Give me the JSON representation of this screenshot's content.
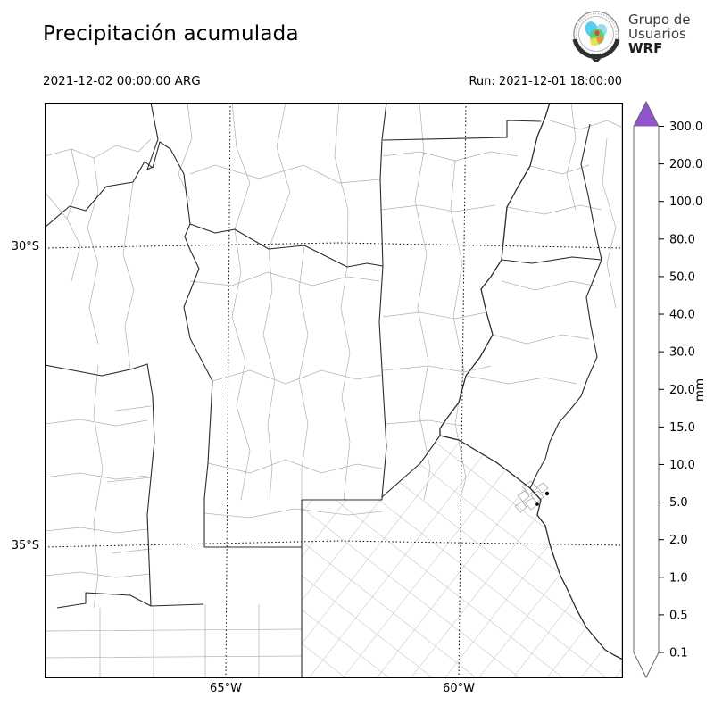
{
  "header": {
    "title": "Precipitación acumulada",
    "valid_time": "2021-12-02 00:00:00 ARG",
    "run": "Run: 2021-12-01 18:00:00"
  },
  "logo": {
    "line1": "Grupo de",
    "line2": "Usuarios",
    "line3": "WRF"
  },
  "map": {
    "lat_labels": [
      {
        "text": "30°S"
      },
      {
        "text": "35°S"
      }
    ],
    "lon_labels": [
      {
        "text": "65°W"
      },
      {
        "text": "60°W"
      }
    ]
  },
  "colorbar": {
    "unit": "mm",
    "tick_labels": [
      "300.0",
      "200.0",
      "100.0",
      "80.0",
      "50.0",
      "40.0",
      "30.0",
      "20.0",
      "15.0",
      "10.0",
      "5.0",
      "2.0",
      "1.0",
      "0.5",
      "0.1"
    ],
    "over_color": "#9254cb",
    "under_color": "#ffffff",
    "segments_top_to_bottom": [
      {
        "from": 200.0,
        "to": 300.0,
        "color": "#9254cb"
      },
      {
        "from": 100.0,
        "to": 200.0,
        "color": "#b20000"
      },
      {
        "from": 80.0,
        "to": 100.0,
        "color": "#d10000"
      },
      {
        "from": 50.0,
        "to": 80.0,
        "color": "#fe0000"
      },
      {
        "from": 40.0,
        "to": 50.0,
        "color": "#fe9e00"
      },
      {
        "from": 30.0,
        "to": 40.0,
        "color": "#dcbe00"
      },
      {
        "from": 20.0,
        "to": 30.0,
        "color": "#fdf900"
      },
      {
        "from": 15.0,
        "to": 20.0,
        "color": "#008c00"
      },
      {
        "from": 10.0,
        "to": 15.0,
        "color": "#00c400"
      },
      {
        "from": 5.0,
        "to": 10.0,
        "color": "#00fa00"
      },
      {
        "from": 2.0,
        "to": 5.0,
        "color": "#0d0deb"
      },
      {
        "from": 1.0,
        "to": 2.0,
        "color": "#139ce3"
      },
      {
        "from": 0.5,
        "to": 1.0,
        "color": "#00e7e7"
      },
      {
        "from": 0.1,
        "to": 0.5,
        "color": "#ffffff"
      }
    ]
  }
}
